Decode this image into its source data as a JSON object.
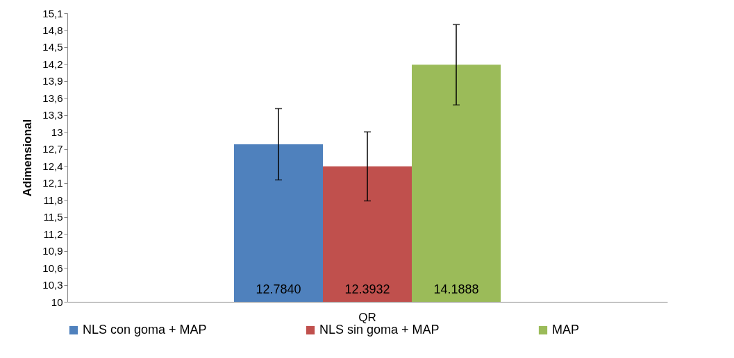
{
  "chart_data": {
    "type": "bar",
    "ylabel": "Adimensional",
    "categories": [
      "QR"
    ],
    "series": [
      {
        "name": "NLS con goma + MAP",
        "color": "#4f81bd",
        "values": [
          12.784
        ],
        "errors": [
          0.63
        ],
        "value_labels": [
          "12.7840"
        ]
      },
      {
        "name": "NLS sin goma + MAP",
        "color": "#c0504d",
        "values": [
          12.3932
        ],
        "errors": [
          0.61
        ],
        "value_labels": [
          "12.3932"
        ]
      },
      {
        "name": "MAP",
        "color": "#9bbb59",
        "values": [
          14.1888
        ],
        "errors": [
          0.71
        ],
        "value_labels": [
          "14.1888"
        ]
      }
    ],
    "ylim": [
      10,
      15.1
    ],
    "yticks": [
      10,
      {
        "value": 10.3,
        "label": "10,3"
      },
      {
        "value": 10.6,
        "label": "10,6"
      },
      {
        "value": 10.9,
        "label": "10,9"
      },
      {
        "value": 11.2,
        "label": "11,2"
      },
      {
        "value": 11.5,
        "label": "11,5"
      },
      {
        "value": 11.8,
        "label": "11,8"
      },
      {
        "value": 12.1,
        "label": "12,1"
      },
      {
        "value": 12.4,
        "label": "12,4"
      },
      {
        "value": 12.7,
        "label": "12,7"
      },
      13,
      {
        "value": 13.3,
        "label": "13,3"
      },
      {
        "value": 13.6,
        "label": "13,6"
      },
      {
        "value": 13.9,
        "label": "13,9"
      },
      {
        "value": 14.2,
        "label": "14,2"
      },
      {
        "value": 14.5,
        "label": "14,5"
      },
      {
        "value": 14.8,
        "label": "14,8"
      },
      {
        "value": 15.1,
        "label": "15,1"
      }
    ],
    "grid": false,
    "legend": "bottom"
  }
}
